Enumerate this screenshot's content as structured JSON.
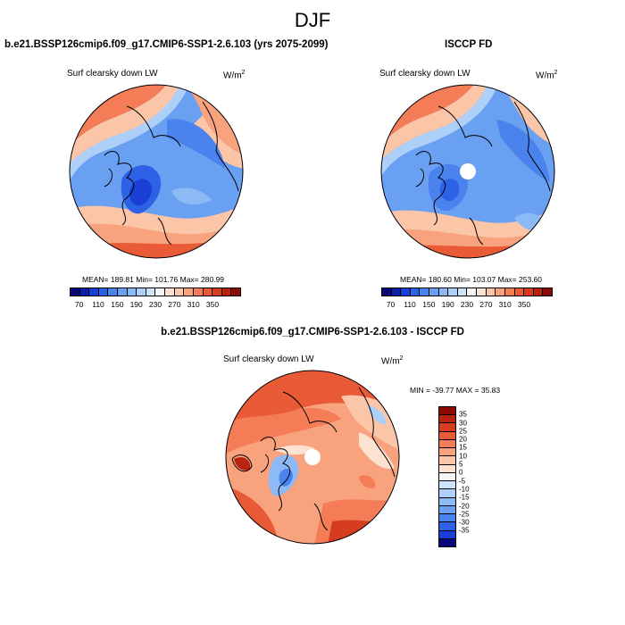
{
  "title": "DJF",
  "panels": [
    {
      "title": "b.e21.BSSP126cmip6.f09_g17.CMIP6-SSP1-2.6.103 (yrs 2075-2099)",
      "variable": "Surf clearsky down LW",
      "units_base": "W/m",
      "units_exp": "2",
      "stats": "MEAN= 189.81   Min= 101.76   Max= 280.99"
    },
    {
      "title": "ISCCP FD",
      "variable": "Surf clearsky down LW",
      "units_base": "W/m",
      "units_exp": "2",
      "stats": "MEAN= 180.60   Min= 103.07   Max= 253.60"
    },
    {
      "title": "b.e21.BSSP126cmip6.f09_g17.CMIP6-SSP1-2.6.103 - ISCCP FD",
      "variable": "Surf clearsky down LW",
      "units_base": "W/m",
      "units_exp": "2",
      "stats": "MIN = -39.77  MAX =  35.83"
    }
  ],
  "abs_colorbar": {
    "labels": [
      "70",
      "110",
      "150",
      "190",
      "230",
      "270",
      "310",
      "350"
    ],
    "colors": [
      "#08087a",
      "#0d1fa8",
      "#1a3fd6",
      "#2e62e6",
      "#4a83ee",
      "#6aa0f2",
      "#8bbaf6",
      "#adcff8",
      "#cfe2fb",
      "#f5f5f5",
      "#fde2d2",
      "#fbc5a8",
      "#f8a27e",
      "#f47d57",
      "#e95a36",
      "#d63c1f",
      "#b8230f",
      "#8b0b04"
    ]
  },
  "diff_colorbar": {
    "labels": [
      "35",
      "30",
      "25",
      "20",
      "15",
      "10",
      "5",
      "0",
      "-5",
      "-10",
      "-15",
      "-20",
      "-25",
      "-30",
      "-35"
    ],
    "colors": [
      "#8b0b04",
      "#b8230f",
      "#d63c1f",
      "#e95a36",
      "#f47d57",
      "#f8a27e",
      "#fbc5a8",
      "#fde2d2",
      "#f5f5f5",
      "#cfe2fb",
      "#adcff8",
      "#8bbaf6",
      "#6aa0f2",
      "#4a83ee",
      "#2e62e6",
      "#1a3fd6",
      "#08087a"
    ]
  }
}
